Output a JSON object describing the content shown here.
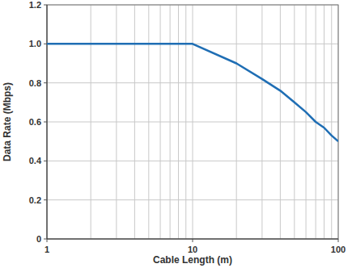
{
  "chart_data": {
    "type": "line",
    "x_label": "Cable Length (m)",
    "y_label": "Data Rate (Mbps)",
    "x": [
      1,
      10,
      20,
      30,
      40,
      50,
      60,
      70,
      80,
      90,
      100
    ],
    "values": [
      1.0,
      1.0,
      0.9,
      0.82,
      0.76,
      0.7,
      0.65,
      0.6,
      0.57,
      0.53,
      0.5
    ],
    "color": "#1f6eb4",
    "xlim": [
      1,
      100
    ],
    "xticks": [
      1,
      10,
      100
    ],
    "ylim": [
      0,
      1.2
    ],
    "yticks": [
      0,
      0.2,
      0.4,
      0.6,
      0.8,
      {
        "value": 1.0,
        "label": "1.0"
      },
      1.2
    ],
    "log": "x",
    "grid": true
  }
}
